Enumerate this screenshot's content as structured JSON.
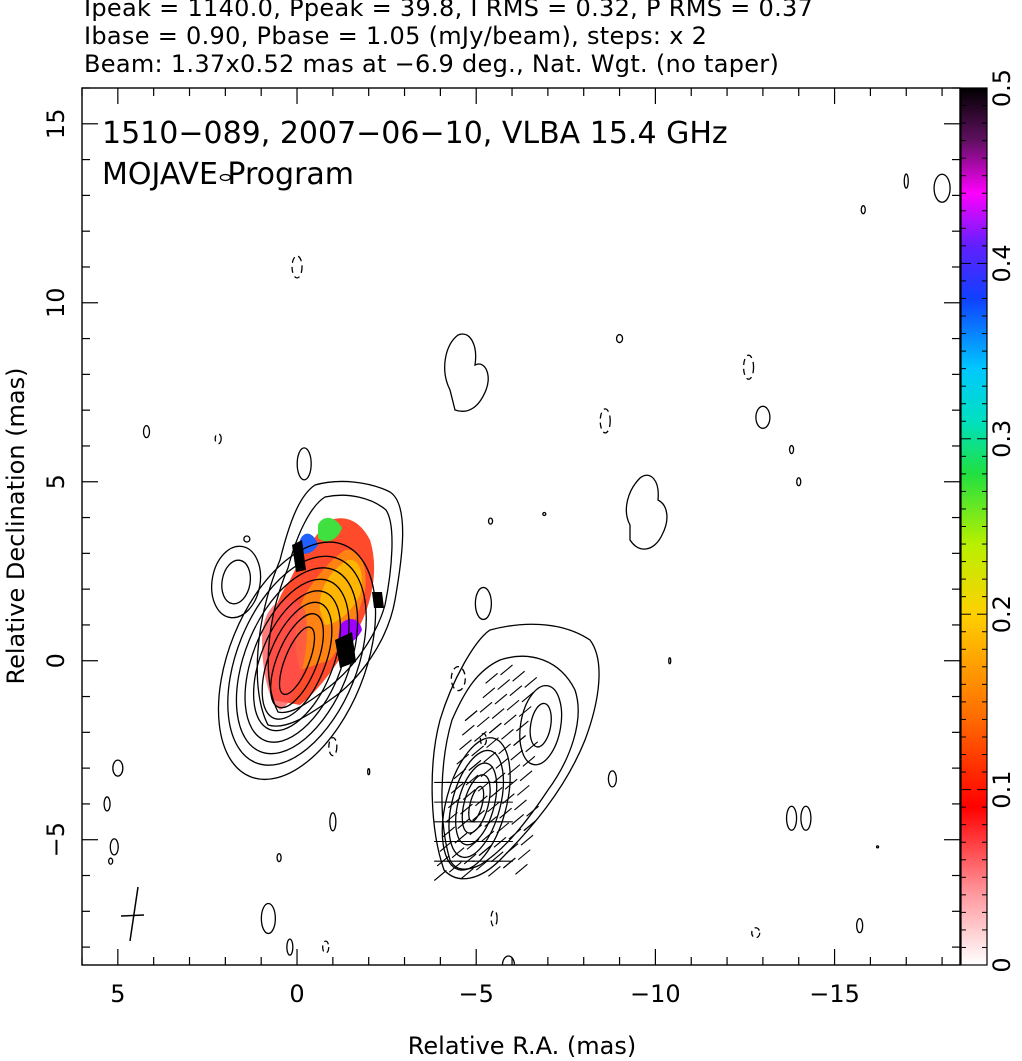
{
  "header": {
    "lines": [
      "Ipeak = 1140.0, Ppeak = 39.8, I RMS = 0.32, P RMS = 0.37",
      "Ibase = 0.90, Pbase = 1.05 (mJy/beam), steps: x 2",
      "Beam: 1.37x0.52 mas at −6.9 deg., Nat. Wgt. (no taper)"
    ]
  },
  "chart_data": {
    "type": "contour",
    "title_lines": [
      "1510−089, 2007−06−10, VLBA 15.4 GHz",
      "MOJAVE Program"
    ],
    "xlabel": "Relative R.A. (mas)",
    "ylabel": "Relative Declination (mas)",
    "xlim": [
      6,
      -18.5
    ],
    "ylim": [
      -8.5,
      16
    ],
    "x_ticks": [
      5,
      0,
      -5,
      -10,
      -15
    ],
    "x_tick_labels": [
      "5",
      "0",
      "−5",
      "−10",
      "−15"
    ],
    "y_ticks": [
      -5,
      0,
      5,
      10,
      15
    ],
    "y_tick_labels": [
      "−5",
      "0",
      "5",
      "10",
      "15"
    ],
    "colorbar": {
      "min": 0,
      "max": 0.5,
      "ticks": [
        0,
        0.1,
        0.2,
        0.3,
        0.4,
        0.5
      ],
      "tick_labels": [
        "0",
        "0.1",
        "0.2",
        "0.3",
        "0.4",
        "0.5"
      ]
    },
    "core": {
      "x": 0,
      "y": 0,
      "peak_mjy_per_beam": 1140.0
    },
    "jet_component": {
      "x": -5,
      "y": -4
    },
    "levels_base_mjy_per_beam": 0.9,
    "level_step": 2,
    "beam": {
      "major_mas": 1.37,
      "minor_mas": 0.52,
      "pa_deg": -6.9
    }
  }
}
